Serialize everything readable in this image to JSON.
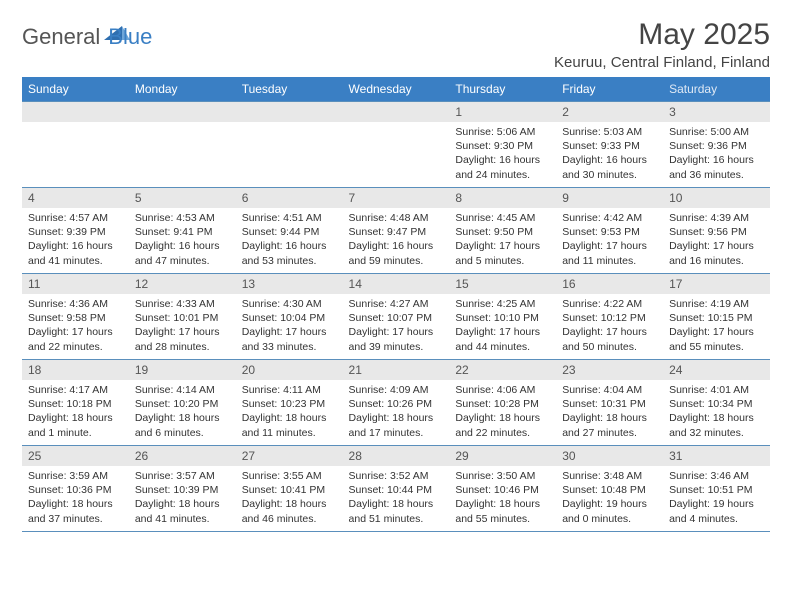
{
  "brand": {
    "part1": "General",
    "part2": "Blue"
  },
  "title": "May 2025",
  "location": "Keuruu, Central Finland, Finland",
  "day_headers": [
    "Sunday",
    "Monday",
    "Tuesday",
    "Wednesday",
    "Thursday",
    "Friday",
    "Saturday"
  ],
  "colors": {
    "header_bg": "#3a7fc4",
    "header_text": "#ffffff",
    "daynum_bg": "#e8e8e8",
    "rule": "#5a8fbc",
    "body_text": "#333333"
  },
  "weeks": [
    [
      {
        "n": "",
        "lines": []
      },
      {
        "n": "",
        "lines": []
      },
      {
        "n": "",
        "lines": []
      },
      {
        "n": "",
        "lines": []
      },
      {
        "n": "1",
        "lines": [
          "Sunrise: 5:06 AM",
          "Sunset: 9:30 PM",
          "Daylight: 16 hours and 24 minutes."
        ]
      },
      {
        "n": "2",
        "lines": [
          "Sunrise: 5:03 AM",
          "Sunset: 9:33 PM",
          "Daylight: 16 hours and 30 minutes."
        ]
      },
      {
        "n": "3",
        "lines": [
          "Sunrise: 5:00 AM",
          "Sunset: 9:36 PM",
          "Daylight: 16 hours and 36 minutes."
        ]
      }
    ],
    [
      {
        "n": "4",
        "lines": [
          "Sunrise: 4:57 AM",
          "Sunset: 9:39 PM",
          "Daylight: 16 hours and 41 minutes."
        ]
      },
      {
        "n": "5",
        "lines": [
          "Sunrise: 4:53 AM",
          "Sunset: 9:41 PM",
          "Daylight: 16 hours and 47 minutes."
        ]
      },
      {
        "n": "6",
        "lines": [
          "Sunrise: 4:51 AM",
          "Sunset: 9:44 PM",
          "Daylight: 16 hours and 53 minutes."
        ]
      },
      {
        "n": "7",
        "lines": [
          "Sunrise: 4:48 AM",
          "Sunset: 9:47 PM",
          "Daylight: 16 hours and 59 minutes."
        ]
      },
      {
        "n": "8",
        "lines": [
          "Sunrise: 4:45 AM",
          "Sunset: 9:50 PM",
          "Daylight: 17 hours and 5 minutes."
        ]
      },
      {
        "n": "9",
        "lines": [
          "Sunrise: 4:42 AM",
          "Sunset: 9:53 PM",
          "Daylight: 17 hours and 11 minutes."
        ]
      },
      {
        "n": "10",
        "lines": [
          "Sunrise: 4:39 AM",
          "Sunset: 9:56 PM",
          "Daylight: 17 hours and 16 minutes."
        ]
      }
    ],
    [
      {
        "n": "11",
        "lines": [
          "Sunrise: 4:36 AM",
          "Sunset: 9:58 PM",
          "Daylight: 17 hours and 22 minutes."
        ]
      },
      {
        "n": "12",
        "lines": [
          "Sunrise: 4:33 AM",
          "Sunset: 10:01 PM",
          "Daylight: 17 hours and 28 minutes."
        ]
      },
      {
        "n": "13",
        "lines": [
          "Sunrise: 4:30 AM",
          "Sunset: 10:04 PM",
          "Daylight: 17 hours and 33 minutes."
        ]
      },
      {
        "n": "14",
        "lines": [
          "Sunrise: 4:27 AM",
          "Sunset: 10:07 PM",
          "Daylight: 17 hours and 39 minutes."
        ]
      },
      {
        "n": "15",
        "lines": [
          "Sunrise: 4:25 AM",
          "Sunset: 10:10 PM",
          "Daylight: 17 hours and 44 minutes."
        ]
      },
      {
        "n": "16",
        "lines": [
          "Sunrise: 4:22 AM",
          "Sunset: 10:12 PM",
          "Daylight: 17 hours and 50 minutes."
        ]
      },
      {
        "n": "17",
        "lines": [
          "Sunrise: 4:19 AM",
          "Sunset: 10:15 PM",
          "Daylight: 17 hours and 55 minutes."
        ]
      }
    ],
    [
      {
        "n": "18",
        "lines": [
          "Sunrise: 4:17 AM",
          "Sunset: 10:18 PM",
          "Daylight: 18 hours and 1 minute."
        ]
      },
      {
        "n": "19",
        "lines": [
          "Sunrise: 4:14 AM",
          "Sunset: 10:20 PM",
          "Daylight: 18 hours and 6 minutes."
        ]
      },
      {
        "n": "20",
        "lines": [
          "Sunrise: 4:11 AM",
          "Sunset: 10:23 PM",
          "Daylight: 18 hours and 11 minutes."
        ]
      },
      {
        "n": "21",
        "lines": [
          "Sunrise: 4:09 AM",
          "Sunset: 10:26 PM",
          "Daylight: 18 hours and 17 minutes."
        ]
      },
      {
        "n": "22",
        "lines": [
          "Sunrise: 4:06 AM",
          "Sunset: 10:28 PM",
          "Daylight: 18 hours and 22 minutes."
        ]
      },
      {
        "n": "23",
        "lines": [
          "Sunrise: 4:04 AM",
          "Sunset: 10:31 PM",
          "Daylight: 18 hours and 27 minutes."
        ]
      },
      {
        "n": "24",
        "lines": [
          "Sunrise: 4:01 AM",
          "Sunset: 10:34 PM",
          "Daylight: 18 hours and 32 minutes."
        ]
      }
    ],
    [
      {
        "n": "25",
        "lines": [
          "Sunrise: 3:59 AM",
          "Sunset: 10:36 PM",
          "Daylight: 18 hours and 37 minutes."
        ]
      },
      {
        "n": "26",
        "lines": [
          "Sunrise: 3:57 AM",
          "Sunset: 10:39 PM",
          "Daylight: 18 hours and 41 minutes."
        ]
      },
      {
        "n": "27",
        "lines": [
          "Sunrise: 3:55 AM",
          "Sunset: 10:41 PM",
          "Daylight: 18 hours and 46 minutes."
        ]
      },
      {
        "n": "28",
        "lines": [
          "Sunrise: 3:52 AM",
          "Sunset: 10:44 PM",
          "Daylight: 18 hours and 51 minutes."
        ]
      },
      {
        "n": "29",
        "lines": [
          "Sunrise: 3:50 AM",
          "Sunset: 10:46 PM",
          "Daylight: 18 hours and 55 minutes."
        ]
      },
      {
        "n": "30",
        "lines": [
          "Sunrise: 3:48 AM",
          "Sunset: 10:48 PM",
          "Daylight: 19 hours and 0 minutes."
        ]
      },
      {
        "n": "31",
        "lines": [
          "Sunrise: 3:46 AM",
          "Sunset: 10:51 PM",
          "Daylight: 19 hours and 4 minutes."
        ]
      }
    ]
  ]
}
